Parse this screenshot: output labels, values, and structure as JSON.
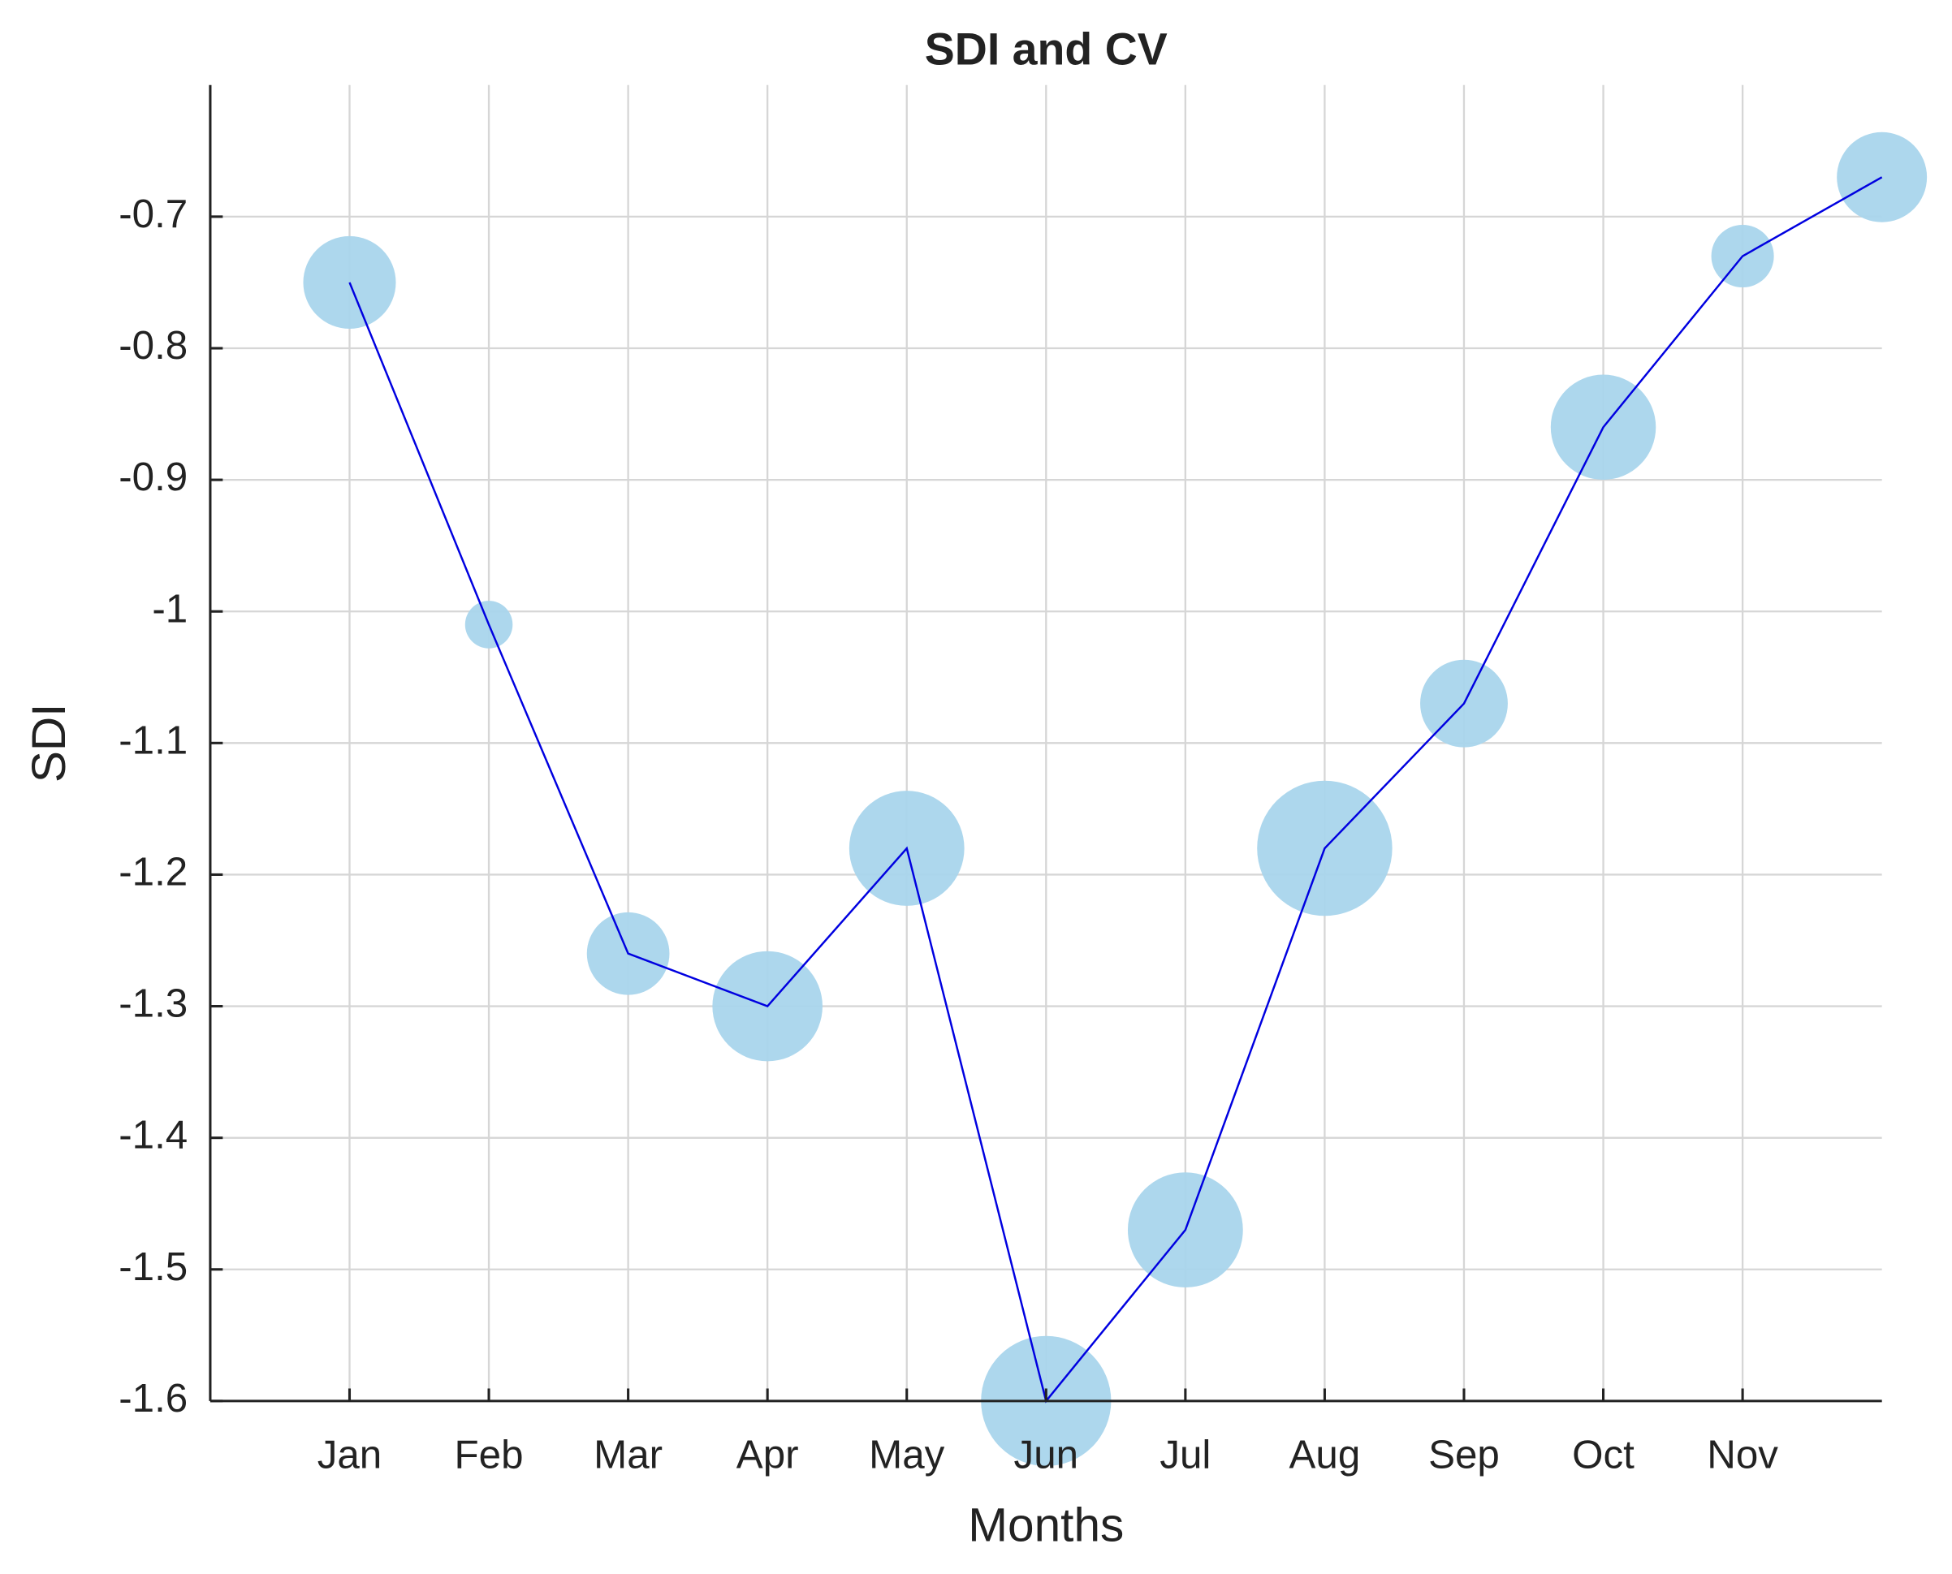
{
  "chart_data": {
    "type": "bubble",
    "title": "SDI and CV",
    "xlabel": "Months",
    "ylabel": "SDI",
    "categories": [
      "Jan",
      "Feb",
      "Mar",
      "Apr",
      "May",
      "Jun",
      "Jul",
      "Aug",
      "Sep",
      "Oct",
      "Nov",
      null
    ],
    "values": [
      -0.75,
      -1.01,
      -1.26,
      -1.3,
      -1.18,
      -1.6,
      -1.47,
      -1.18,
      -1.07,
      -0.86,
      -0.73,
      -0.67
    ],
    "sizes": [
      37,
      19,
      33,
      44,
      46,
      52,
      46,
      54,
      35,
      42,
      25,
      36
    ],
    "color": "#a9d5ec",
    "line_color": "#0000e0",
    "ylim": [
      -1.6,
      -0.6
    ],
    "yticks": [
      -1.6,
      -1.5,
      -1.4,
      -1.3,
      -1.2,
      -1.1,
      -1,
      -0.9,
      -0.8,
      -0.7
    ],
    "grid": true
  }
}
